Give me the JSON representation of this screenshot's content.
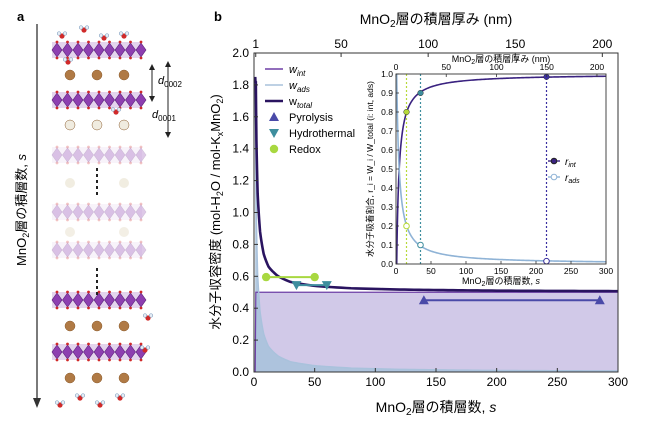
{
  "panel_a": {
    "label": "a",
    "d0002": "d",
    "d0002_sub": "0002",
    "d0001": "d",
    "d0001_sub": "0001",
    "axis_label_pre": "MnO",
    "axis_label_sub": "2",
    "axis_label_post": "層の積層数, ",
    "axis_label_var": "s"
  },
  "chart_data": [
    {
      "type": "line",
      "panel_label": "b",
      "x_axis": {
        "range": [
          0,
          300
        ],
        "ticks": [
          0,
          50,
          100,
          150,
          200,
          250,
          300
        ],
        "label_pre": "MnO",
        "label_sub": "2",
        "label_post": "層の積層数, ",
        "label_var": "s"
      },
      "x_axis_top": {
        "range_nm": [
          0,
          209
        ],
        "ticks": [
          1,
          50,
          100,
          150,
          200
        ],
        "label_pre": "MnO",
        "label_sub": "2",
        "label_post": "層の積層厚み (nm)"
      },
      "y_axis": {
        "range": [
          0,
          2.0
        ],
        "ticks": [
          0.0,
          0.2,
          0.4,
          0.6,
          0.8,
          1.0,
          1.2,
          1.4,
          1.6,
          1.8,
          2.0
        ],
        "label_main": "水分子収容密度 (mol-H",
        "label_sub1": "2",
        "label_mid": "O / mol-K",
        "label_subx": "x",
        "label_mid2": "MnO",
        "label_sub2": "2",
        "label_end": ")"
      },
      "series": [
        {
          "name": "w",
          "name_sub": "int",
          "color": "#6e3fa6"
        },
        {
          "name": "w",
          "name_sub": "ads",
          "color": "#a9c2dc"
        },
        {
          "name": "w",
          "name_sub": "total",
          "color": "#2a1460"
        }
      ],
      "w_int_plateau": 0.5,
      "w_ads_samples": {
        "x": [
          1,
          2,
          3,
          5,
          8,
          12,
          20,
          30,
          50,
          80,
          120,
          200,
          300
        ],
        "y": [
          1.85,
          0.95,
          0.62,
          0.38,
          0.24,
          0.16,
          0.1,
          0.065,
          0.04,
          0.025,
          0.017,
          0.01,
          0.007
        ]
      },
      "legend_markers": [
        {
          "label": "Pyrolysis",
          "color": "#4a4aa8",
          "marker": "triangle-up"
        },
        {
          "label": "Hydrothermal",
          "color": "#3e8e9e",
          "marker": "triangle-down"
        },
        {
          "label": "Redox",
          "color": "#a8d840",
          "marker": "circle"
        }
      ],
      "ranges": [
        {
          "name": "Redox",
          "x": [
            10,
            50
          ],
          "y": 0.595
        },
        {
          "name": "Hydrothermal",
          "x": [
            35,
            60
          ],
          "y": 0.545
        },
        {
          "name": "Pyrolysis",
          "x": [
            140,
            285
          ],
          "y": 0.45
        }
      ]
    },
    {
      "type": "line",
      "inset": true,
      "x_axis": {
        "range": [
          0,
          300
        ],
        "ticks": [
          0,
          50,
          100,
          150,
          200,
          250,
          300
        ],
        "label_pre": "MnO",
        "label_sub": "2",
        "label_post": "層の積層数, ",
        "label_var": "s"
      },
      "x_axis_top": {
        "ticks": [
          0,
          50,
          100,
          150,
          200
        ],
        "label_pre": "MnO",
        "label_sub": "2",
        "label_post": "層の積層厚み (nm)"
      },
      "y_axis": {
        "range": [
          0,
          1.0
        ],
        "ticks": [
          0.0,
          0.1,
          0.2,
          0.3,
          0.4,
          0.5,
          0.6,
          0.7,
          0.8,
          0.9,
          1.0
        ],
        "label": "水分子吸着割合, r_i = W_i / W_total (i: int, ads)"
      },
      "series": [
        {
          "name": "r",
          "name_sub": "int",
          "color": "#3a2280",
          "marker": "filled-circle"
        },
        {
          "name": "r",
          "name_sub": "ads",
          "color": "#8fb3d6",
          "marker": "open-circle"
        }
      ],
      "marked_points": [
        {
          "s": 15,
          "r_int": 0.8,
          "r_ads": 0.2,
          "line_color": "#b7d93a"
        },
        {
          "s": 35,
          "r_int": 0.9,
          "r_ads": 0.1,
          "line_color": "#3e8e9e"
        },
        {
          "s": 215,
          "r_int": 0.985,
          "r_ads": 0.015,
          "line_color": "#3a2fa0"
        }
      ]
    }
  ]
}
